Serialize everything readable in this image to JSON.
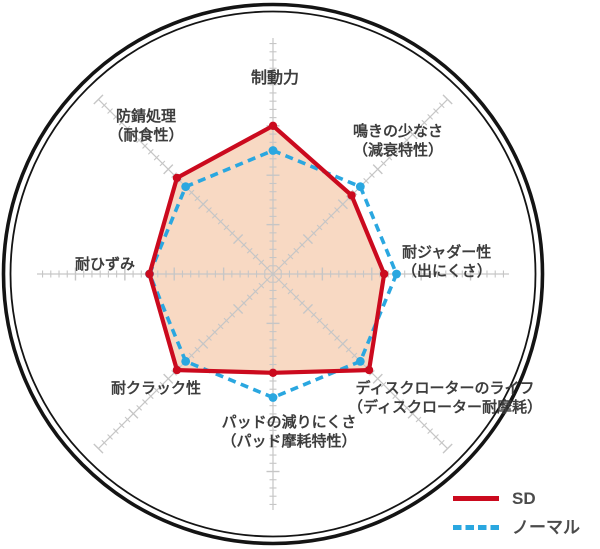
{
  "chart_data": {
    "type": "radar",
    "title": "",
    "axes": [
      "制動力",
      "鳴きの少なさ（減衰特性）",
      "耐ジャダー性（出にくさ）",
      "ディスクローターのライフ（ディスクローター耐摩耗）",
      "パッドの減りにくさ（パッド摩耗特性）",
      "耐クラック性",
      "耐ひずみ",
      "防錆処理（耐食性）"
    ],
    "axis_order": "clockwise-from-top",
    "scale": {
      "min": 0,
      "max": 9.5,
      "baseline_note": "ノーマル = 5 on all axes"
    },
    "series": [
      {
        "name": "SD",
        "line": "solid",
        "color": "#cb0a1e",
        "fill": "#f8d9c3",
        "values": [
          6,
          4.5,
          4.5,
          5.5,
          4,
          5.5,
          5,
          5.5
        ]
      },
      {
        "name": "ノーマル",
        "line": "dashed",
        "color": "#2aa7e0",
        "fill": "none",
        "values": [
          5,
          5,
          5,
          5,
          5,
          5,
          5,
          5
        ]
      }
    ],
    "legend_position": "bottom-right",
    "grid": "8 radial gray axes with tick marks inside a double-ring black circle"
  },
  "labels": {
    "braking": "制動力",
    "rust_line1": "防錆処理",
    "rust_line2": "（耐食性）",
    "squeal_line1": "鳴きの少なさ",
    "squeal_line2": "（減衰特性）",
    "judder_line1": "耐ジャダー性",
    "judder_line2": "（出にくさ）",
    "rotor_life_line1": "ディスクローターのライフ",
    "rotor_life_line2": "（ディスクローター耐摩耗）",
    "pad_line1": "パッドの減りにくさ",
    "pad_line2": "（パッド摩耗特性）",
    "crack": "耐クラック性",
    "distortion": "耐ひずみ"
  },
  "legend": {
    "sd_label": "SD",
    "normal_label": "ノーマル"
  },
  "colors": {
    "sd_red": "#cb0a1e",
    "normal_blue": "#2aa7e0",
    "fill_peach": "#f8d9c3",
    "axis_gray": "#c6c6c6",
    "ring_black": "#141414",
    "label_text": "#3d3d3d"
  }
}
